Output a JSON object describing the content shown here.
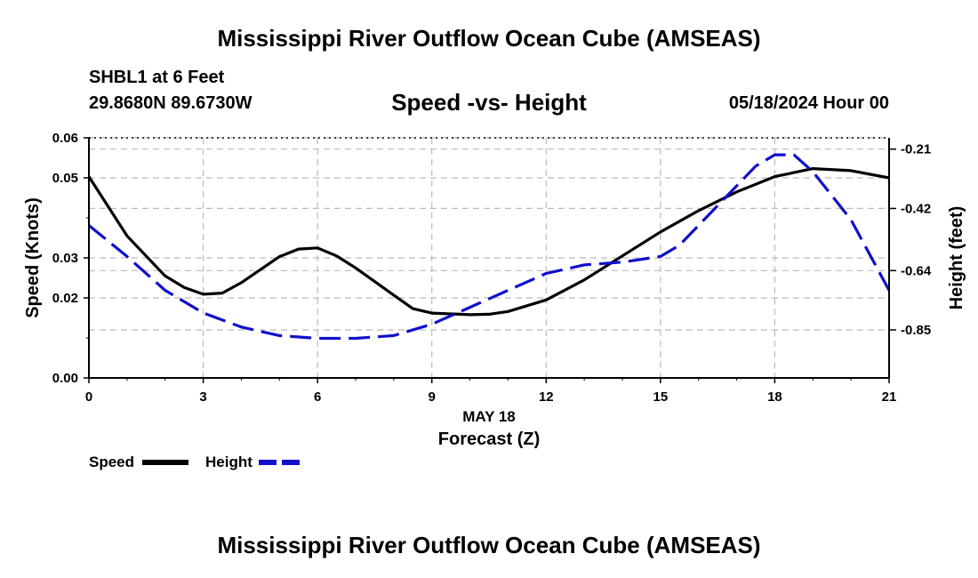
{
  "header": {
    "title": "Mississippi River Outflow Ocean Cube (AMSEAS)",
    "station": "SHBL1 at 6 Feet",
    "coordinates": "29.8680N  89.6730W",
    "subtitle": "Speed -vs- Height",
    "datetime": "05/18/2024 Hour 00"
  },
  "footer": {
    "title": "Mississippi River Outflow Ocean Cube (AMSEAS)"
  },
  "legend": {
    "speed_label": "Speed",
    "height_label": "Height"
  },
  "colors": {
    "speed": "#000000",
    "height": "#1010cc",
    "grid": "#bbbbbb"
  },
  "chart_data": {
    "type": "line",
    "title": "Speed -vs- Height",
    "xlabel": "Forecast (Z)",
    "xlabel_date": "MAY 18",
    "ylabel": "Speed (Knots)",
    "y2label": "Height (feet)",
    "xlim": [
      0,
      21
    ],
    "ylim": [
      0,
      0.06
    ],
    "y2lim": [
      -1.02,
      -0.17
    ],
    "x_ticks": [
      0,
      3,
      6,
      9,
      12,
      15,
      18,
      21
    ],
    "y_ticks": [
      0.0,
      0.02,
      0.03,
      0.05,
      0.06
    ],
    "y_tick_labels": [
      "0.00",
      "0.02",
      "0.03",
      "0.05",
      "0.06"
    ],
    "y2_ticks": [
      -0.21,
      -0.42,
      -0.64,
      -0.85
    ],
    "y2_tick_labels": [
      "-0.21",
      "-0.42",
      "-0.64",
      "-0.85"
    ],
    "grid": true,
    "series": [
      {
        "name": "Speed",
        "axis": "left",
        "style": "solid",
        "x": [
          0,
          1,
          2,
          2.5,
          3,
          3.5,
          4,
          5,
          5.5,
          6,
          6.5,
          7,
          8,
          8.5,
          9,
          10,
          10.5,
          11,
          12,
          13,
          14,
          15,
          16,
          17,
          18,
          19,
          20,
          21
        ],
        "values": [
          0.0503,
          0.0355,
          0.0255,
          0.0226,
          0.0209,
          0.0212,
          0.0238,
          0.0303,
          0.0322,
          0.0325,
          0.0305,
          0.0275,
          0.0207,
          0.0173,
          0.0162,
          0.0158,
          0.0159,
          0.0166,
          0.0195,
          0.0245,
          0.0305,
          0.0365,
          0.0418,
          0.0465,
          0.0503,
          0.0523,
          0.0518,
          0.05
        ]
      },
      {
        "name": "Height",
        "axis": "right",
        "style": "dashed",
        "x": [
          0,
          1,
          2,
          3,
          4,
          5,
          6,
          7,
          8,
          9,
          10,
          11,
          12,
          13,
          14,
          15,
          15.5,
          16,
          17,
          17.5,
          18,
          18.5,
          19,
          20,
          21
        ],
        "values": [
          -0.48,
          -0.59,
          -0.71,
          -0.79,
          -0.84,
          -0.87,
          -0.88,
          -0.88,
          -0.87,
          -0.83,
          -0.77,
          -0.71,
          -0.65,
          -0.62,
          -0.61,
          -0.59,
          -0.55,
          -0.48,
          -0.34,
          -0.27,
          -0.23,
          -0.23,
          -0.29,
          -0.46,
          -0.71
        ]
      }
    ]
  }
}
